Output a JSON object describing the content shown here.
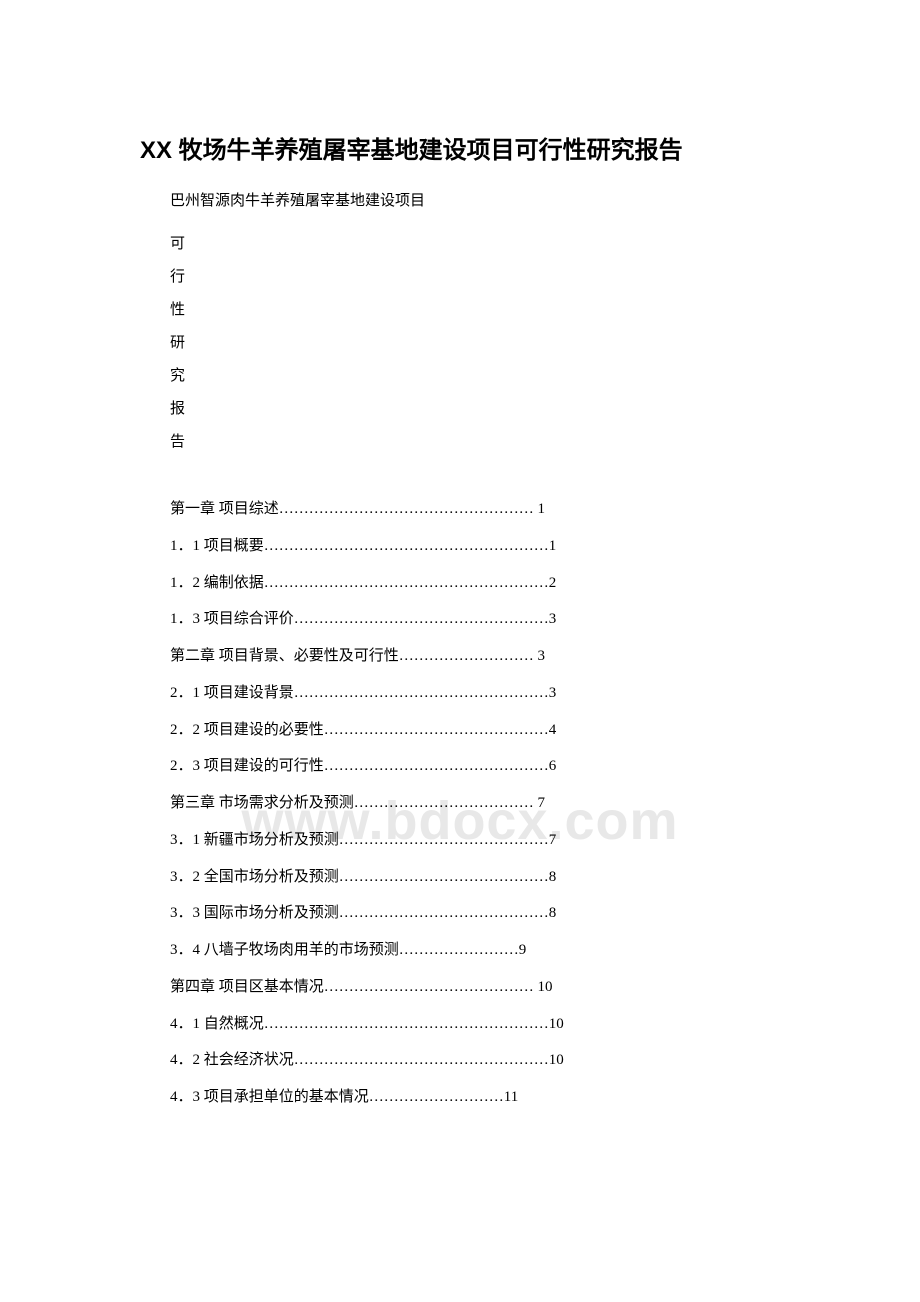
{
  "document": {
    "title": "XX 牧场牛羊养殖屠宰基地建设项目可行性研究报告",
    "subtitle": "巴州智源肉牛羊养殖屠宰基地建设项目",
    "vertical_chars": [
      "可",
      "行",
      "性",
      "研",
      "究",
      "报",
      "告"
    ],
    "watermark": "www.bdocx.com",
    "toc": [
      {
        "text": "第一章 项目综述…………………………………………… 1"
      },
      {
        "text": "1．1 项目概要…………………………………………………1"
      },
      {
        "text": "1．2 编制依据…………………………………………………2"
      },
      {
        "text": "1．3 项目综合评价……………………………………………3"
      },
      {
        "text": "第二章 项目背景、必要性及可行性……………………… 3"
      },
      {
        "text": "2．1 项目建设背景……………………………………………3"
      },
      {
        "text": "2．2 项目建设的必要性………………………………………4"
      },
      {
        "text": "2．3 项目建设的可行性………………………………………6"
      },
      {
        "text": "第三章 市场需求分析及预测……………………………… 7"
      },
      {
        "text": "3．1 新疆市场分析及预测……………………………………7"
      },
      {
        "text": "3．2 全国市场分析及预测……………………………………8"
      },
      {
        "text": "3．3 国际市场分析及预测……………………………………8"
      },
      {
        "text": "3．4 八墙子牧场肉用羊的市场预测……………………9"
      },
      {
        "text": "第四章 项目区基本情况…………………………………… 10"
      },
      {
        "text": "4．1 自然概况…………………………………………………10"
      },
      {
        "text": "4．2 社会经济状况……………………………………………10"
      },
      {
        "text": "4．3 项目承担单位的基本情况………………………11"
      }
    ],
    "styles": {
      "title_fontsize": 24,
      "body_fontsize": 15,
      "line_height": 2.45,
      "text_color": "#000000",
      "background_color": "#ffffff",
      "watermark_color": "#e8e8e8",
      "watermark_fontsize": 54
    }
  }
}
